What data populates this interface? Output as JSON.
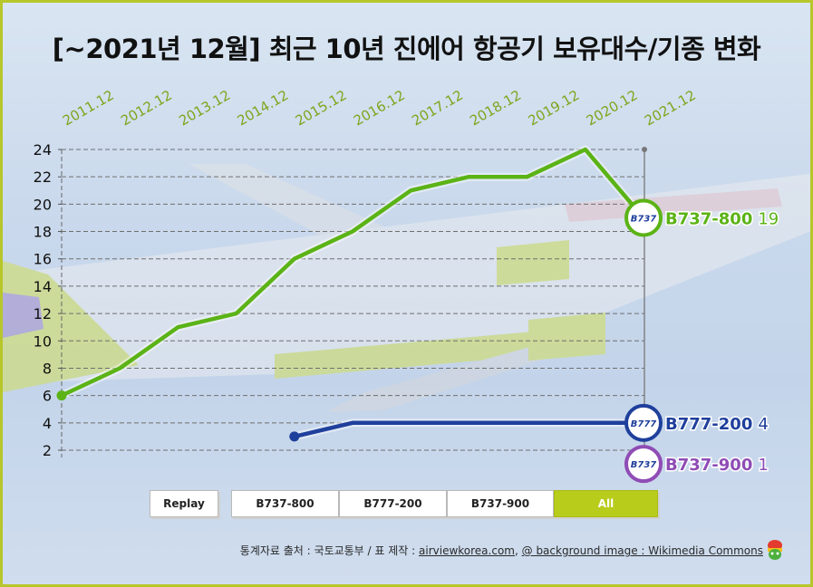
{
  "title": "[~2021년 12월] 최근 10년 진에어 항공기 보유대수/기종 변화",
  "buttons": {
    "replay": "Replay",
    "b737_800": "B737-800",
    "b777_200": "B777-200",
    "b737_900": "B737-900",
    "all": "All"
  },
  "source": {
    "prefix": "통계자료 출처 : 국토교통부 / 표 제작 : ",
    "site": "airviewkorea.com",
    "sep": ", ",
    "bg": "@ background image : Wikimedia Commons"
  },
  "chart_data": {
    "type": "line",
    "title": "[~2021년 12월] 최근 10년 진에어 항공기 보유대수/기종 변화",
    "categories": [
      "2011.12",
      "2012.12",
      "2013.12",
      "2014.12",
      "2015.12",
      "2016.12",
      "2017.12",
      "2018.12",
      "2019.12",
      "2020.12",
      "2021.12"
    ],
    "ylim": [
      1,
      24
    ],
    "yticks": [
      2,
      4,
      6,
      8,
      10,
      12,
      14,
      16,
      18,
      20,
      22,
      24
    ],
    "grid": true,
    "series": [
      {
        "name": "B737-800",
        "badge": "B737",
        "color": "#5bb316",
        "values": [
          6,
          8,
          11,
          12,
          16,
          18,
          21,
          22,
          22,
          24,
          19
        ],
        "label": "B737-800",
        "end_value": "19"
      },
      {
        "name": "B777-200",
        "badge": "B777",
        "color": "#1f3f9c",
        "values": [
          null,
          null,
          null,
          null,
          3,
          4,
          4,
          4,
          4,
          4,
          4
        ],
        "label": "B777-200",
        "end_value": "4"
      },
      {
        "name": "B737-900",
        "badge": "B737",
        "color": "#8f4cb5",
        "values": [
          null,
          null,
          null,
          null,
          null,
          null,
          null,
          null,
          null,
          null,
          1
        ],
        "label": "B737-900",
        "end_value": "1"
      }
    ]
  },
  "colors": {
    "accent": "#b8cc1c",
    "frame": "#b7c62a",
    "category_label": "#7da61c"
  }
}
